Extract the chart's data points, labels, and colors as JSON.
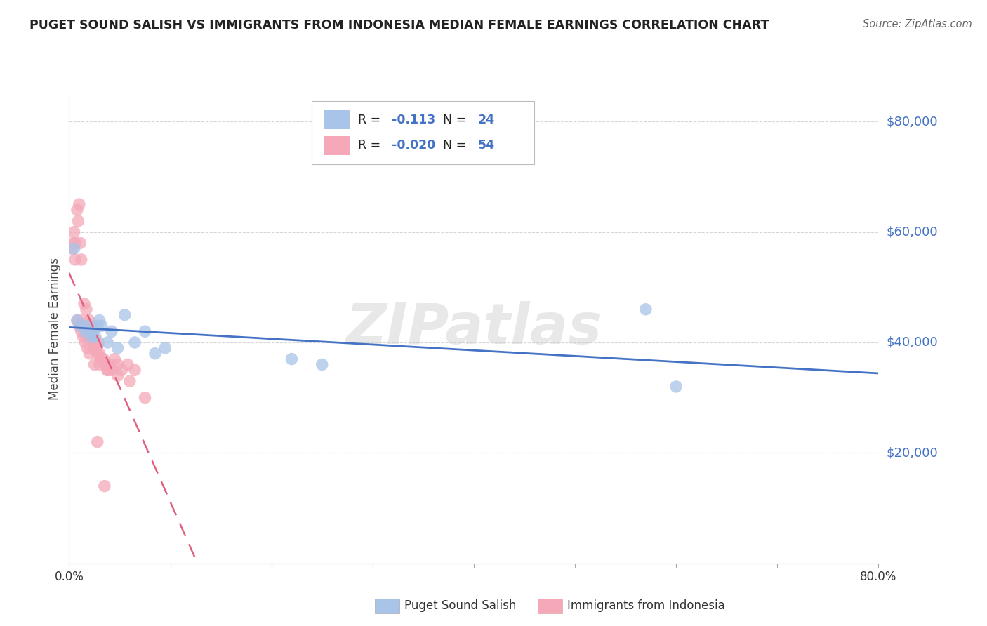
{
  "title": "PUGET SOUND SALISH VS IMMIGRANTS FROM INDONESIA MEDIAN FEMALE EARNINGS CORRELATION CHART",
  "source": "Source: ZipAtlas.com",
  "ylabel": "Median Female Earnings",
  "xlim": [
    0,
    0.8
  ],
  "ylim": [
    0,
    85000
  ],
  "ytick_vals": [
    20000,
    40000,
    60000,
    80000
  ],
  "ytick_labels": [
    "$20,000",
    "$40,000",
    "$60,000",
    "$80,000"
  ],
  "xtick_vals": [
    0.0,
    0.1,
    0.2,
    0.3,
    0.4,
    0.5,
    0.6,
    0.7,
    0.8
  ],
  "xtick_labels": [
    "0.0%",
    "",
    "",
    "",
    "",
    "",
    "",
    "",
    "80.0%"
  ],
  "bg_color": "#ffffff",
  "grid_color": "#cccccc",
  "watermark": "ZIPatlas",
  "series1_name": "Puget Sound Salish",
  "series1_R": "-0.113",
  "series1_N": "24",
  "series1_color": "#a8c4e8",
  "series1_line_color": "#4472c4",
  "series2_name": "Immigrants from Indonesia",
  "series2_R": "-0.020",
  "series2_N": "54",
  "series2_color": "#f4a8b8",
  "series2_line_color": "#e06080",
  "blue_scatter_x": [
    0.005,
    0.008,
    0.012,
    0.016,
    0.018,
    0.02,
    0.022,
    0.024,
    0.026,
    0.028,
    0.03,
    0.032,
    0.038,
    0.042,
    0.048,
    0.055,
    0.065,
    0.075,
    0.085,
    0.095,
    0.22,
    0.25,
    0.57,
    0.6
  ],
  "blue_scatter_y": [
    57000,
    44000,
    43000,
    42000,
    43000,
    42000,
    41000,
    42000,
    41000,
    43000,
    44000,
    43000,
    40000,
    42000,
    39000,
    45000,
    40000,
    42000,
    38000,
    39000,
    37000,
    36000,
    46000,
    32000
  ],
  "pink_scatter_x": [
    0.003,
    0.005,
    0.006,
    0.008,
    0.009,
    0.01,
    0.011,
    0.012,
    0.013,
    0.014,
    0.015,
    0.016,
    0.017,
    0.018,
    0.019,
    0.02,
    0.021,
    0.022,
    0.023,
    0.024,
    0.025,
    0.026,
    0.027,
    0.028,
    0.029,
    0.03,
    0.032,
    0.034,
    0.036,
    0.038,
    0.04,
    0.042,
    0.045,
    0.048,
    0.052,
    0.058,
    0.065,
    0.004,
    0.006,
    0.008,
    0.01,
    0.012,
    0.014,
    0.016,
    0.018,
    0.02,
    0.025,
    0.03,
    0.038,
    0.048,
    0.06,
    0.075,
    0.028,
    0.035
  ],
  "pink_scatter_y": [
    57000,
    60000,
    58000,
    64000,
    62000,
    65000,
    58000,
    55000,
    44000,
    43000,
    47000,
    43000,
    46000,
    42000,
    41000,
    44000,
    42000,
    43000,
    41000,
    41000,
    39000,
    40000,
    39000,
    38000,
    40000,
    38000,
    37000,
    37000,
    36000,
    35000,
    36000,
    35000,
    37000,
    36000,
    35000,
    36000,
    35000,
    58000,
    55000,
    44000,
    43000,
    42000,
    41000,
    40000,
    39000,
    38000,
    36000,
    36000,
    35000,
    34000,
    33000,
    30000,
    22000,
    14000
  ]
}
